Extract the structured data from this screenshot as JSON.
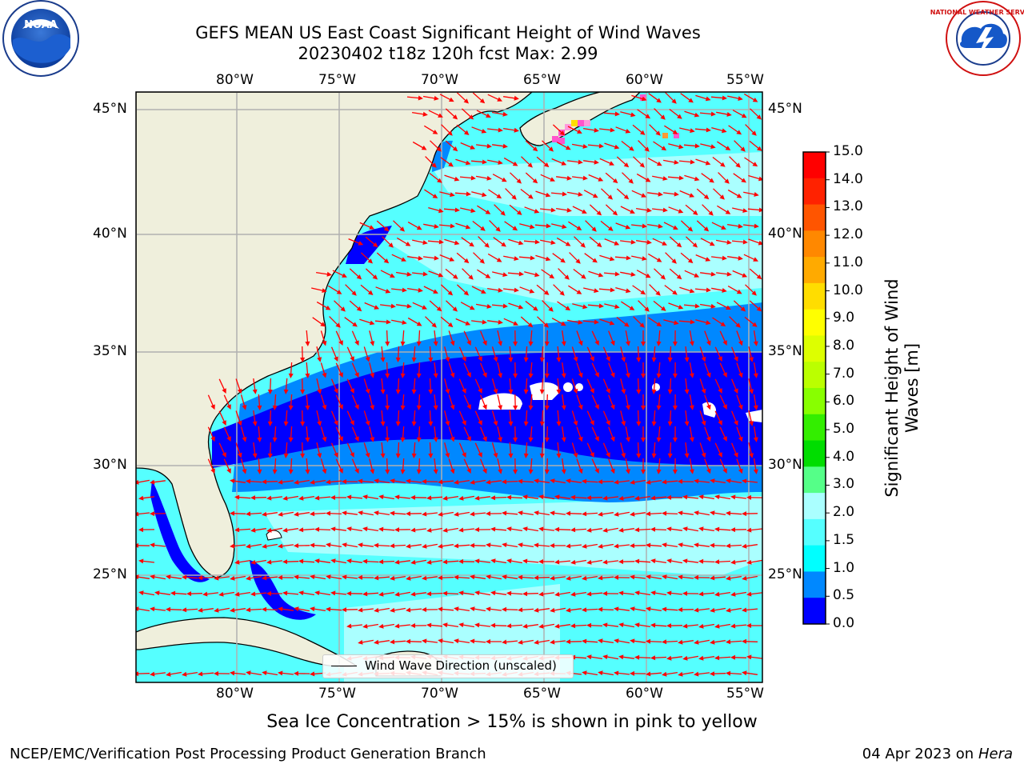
{
  "header": {
    "title_line1": "GEFS MEAN US East Coast Significant Height of Wind Waves",
    "title_line2": "20230402 t18z 120h fcst   Max: 2.99"
  },
  "logos": {
    "noaa_text": "NOAA",
    "nws_text": "NATIONAL WEATHER SERVICE"
  },
  "map": {
    "lon_ticks": [
      "80°W",
      "75°W",
      "70°W",
      "65°W",
      "60°W",
      "55°W"
    ],
    "lat_ticks": [
      "45°N",
      "40°N",
      "35°N",
      "30°N",
      "25°N"
    ],
    "legend_label": "Wind Wave Direction (unscaled)",
    "arrow_color": "#ff0000",
    "land_color": "#efefdc"
  },
  "colorbar": {
    "title": "Significant Height of Wind Waves [m]",
    "title_line1": "Significant Height of Wind",
    "title_line2": "Waves [m]",
    "tick_labels": [
      "15.0",
      "14.0",
      "13.0",
      "12.0",
      "11.0",
      "10.0",
      "9.0",
      "8.0",
      "7.0",
      "6.0",
      "5.0",
      "4.0",
      "3.0",
      "2.0",
      "1.5",
      "1.0",
      "0.5",
      "0.0"
    ],
    "colors": [
      "#ff0000",
      "#ff2200",
      "#ff5500",
      "#ff8800",
      "#ffaa00",
      "#ffdd00",
      "#ffff00",
      "#ddff00",
      "#bbff00",
      "#88ff00",
      "#33ee00",
      "#00dd00",
      "#55ff88",
      "#aaffff",
      "#55ffff",
      "#00ffff",
      "#0088ff",
      "#0000ff"
    ]
  },
  "caption": "Sea Ice Concentration > 15% is shown in pink to yellow",
  "footer": {
    "left": "NCEP/EMC/Verification Post Processing Product Generation Branch",
    "date": "04 Apr 2023 on ",
    "host": "Hera"
  }
}
